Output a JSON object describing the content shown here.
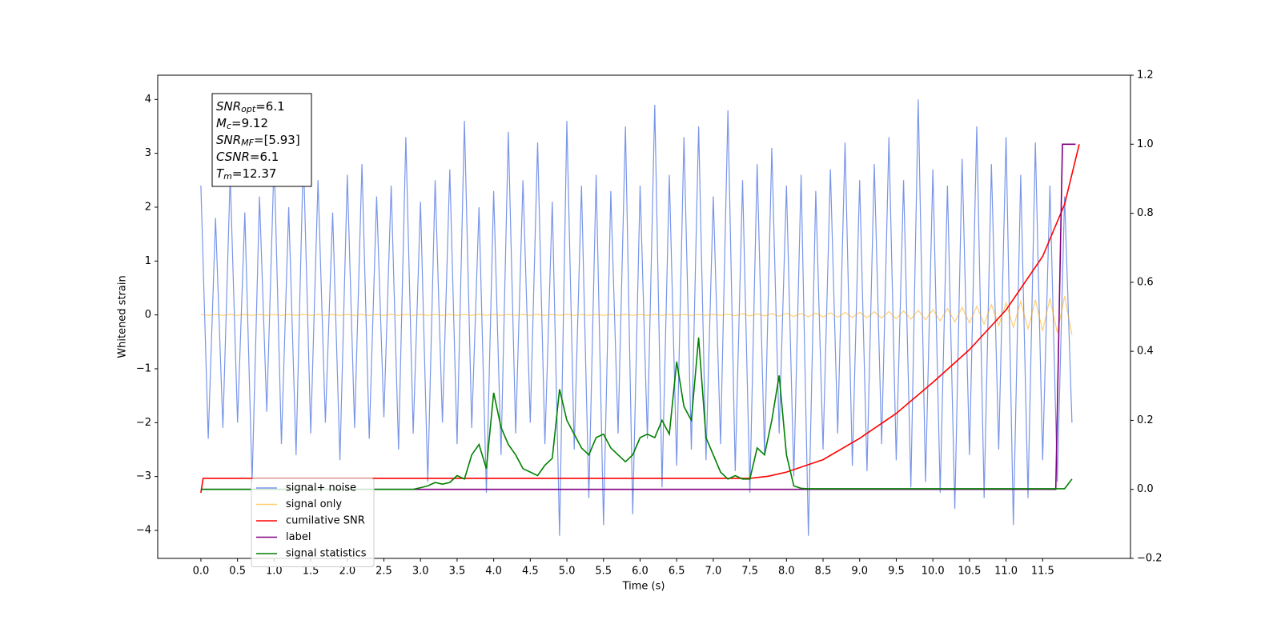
{
  "chart_data": {
    "type": "line",
    "xlabel": "Time (s)",
    "ylabel": "Whitened strain",
    "xlim": [
      -0.59,
      12.7
    ],
    "ylim": [
      -4.52,
      4.45
    ],
    "y2lim": [
      -0.2,
      1.2
    ],
    "xticks": [
      {
        "value": 0,
        "label": "0.0"
      },
      0.5,
      {
        "value": 1,
        "label": "1.0"
      },
      1.5,
      {
        "value": 2,
        "label": "2.0"
      },
      2.5,
      {
        "value": 3,
        "label": "3.0"
      },
      3.5,
      {
        "value": 4,
        "label": "4.0"
      },
      4.5,
      {
        "value": 5,
        "label": "5.0"
      },
      5.5,
      {
        "value": 6,
        "label": "6.0"
      },
      6.5,
      {
        "value": 7,
        "label": "7.0"
      },
      7.5,
      {
        "value": 8,
        "label": "8.0"
      },
      8.5,
      {
        "value": 9,
        "label": "9.0"
      },
      9.5,
      {
        "value": 10,
        "label": "10.0"
      },
      10.5,
      {
        "value": 11,
        "label": "11.0"
      },
      11.5
    ],
    "yticks": [
      {
        "value": -4,
        "label": "−4"
      },
      {
        "value": -3,
        "label": "−3"
      },
      {
        "value": -2,
        "label": "−2"
      },
      {
        "value": -1,
        "label": "−1"
      },
      0,
      1,
      2,
      3,
      4
    ],
    "y2ticks": [
      {
        "value": -0.2,
        "label": "−0.2"
      },
      {
        "value": 0,
        "label": "0.0"
      },
      0.2,
      0.4,
      0.6,
      0.8,
      {
        "value": 1,
        "label": "1.0"
      },
      1.2
    ],
    "legend": "lower left",
    "annotation": [
      {
        "name": "SNR",
        "sub": "opt",
        "text": "=6.1"
      },
      {
        "name": "M",
        "sub": "c",
        "text": "=9.12"
      },
      {
        "name": "SNR",
        "sub": "MF",
        "text": "=[5.93]"
      },
      {
        "name": "CSNR",
        "sub": "",
        "text": "=6.1"
      },
      {
        "name": "T",
        "sub": "m",
        "text": "=12.37"
      }
    ],
    "series": [
      {
        "name": "signal+ noise",
        "color": "#7895e8",
        "axis": "y",
        "x": [
          0,
          0.1,
          0.2,
          0.3,
          0.4,
          0.5,
          0.6,
          0.7,
          0.8,
          0.9,
          1,
          1.1,
          1.2,
          1.3,
          1.4,
          1.5,
          1.6,
          1.7,
          1.8,
          1.9,
          2,
          2.1,
          2.2,
          2.3,
          2.4,
          2.5,
          2.6,
          2.7,
          2.8,
          2.9,
          3,
          3.1,
          3.2,
          3.3,
          3.4,
          3.5,
          3.6,
          3.7,
          3.8,
          3.9,
          4,
          4.1,
          4.2,
          4.3,
          4.4,
          4.5,
          4.6,
          4.7,
          4.8,
          4.9,
          5,
          5.1,
          5.2,
          5.3,
          5.4,
          5.5,
          5.6,
          5.7,
          5.8,
          5.9,
          6,
          6.1,
          6.2,
          6.3,
          6.4,
          6.5,
          6.6,
          6.7,
          6.8,
          6.9,
          7,
          7.1,
          7.2,
          7.3,
          7.4,
          7.5,
          7.6,
          7.7,
          7.8,
          7.9,
          8,
          8.1,
          8.2,
          8.3,
          8.4,
          8.5,
          8.6,
          8.7,
          8.8,
          8.9,
          9,
          9.1,
          9.2,
          9.3,
          9.4,
          9.5,
          9.6,
          9.7,
          9.8,
          9.9,
          10,
          10.1,
          10.2,
          10.3,
          10.4,
          10.5,
          10.6,
          10.7,
          10.8,
          10.9,
          11,
          11.1,
          11.2,
          11.3,
          11.4,
          11.5,
          11.6,
          11.7,
          11.8,
          11.9
        ],
        "values": [
          2.4,
          -2.3,
          1.8,
          -2.1,
          2.6,
          -2.0,
          1.9,
          -3.1,
          2.2,
          -1.8,
          2.9,
          -2.4,
          2.0,
          -2.6,
          3.0,
          -2.2,
          2.5,
          -2.0,
          1.9,
          -2.7,
          2.6,
          -2.1,
          2.8,
          -2.3,
          2.2,
          -1.9,
          2.4,
          -2.5,
          3.3,
          -2.2,
          2.1,
          -3.1,
          2.5,
          -2.0,
          2.7,
          -2.4,
          3.6,
          -2.1,
          2.0,
          -3.3,
          2.3,
          -2.6,
          3.4,
          -2.2,
          2.5,
          -2.0,
          3.2,
          -2.4,
          2.1,
          -4.1,
          3.6,
          -2.5,
          2.4,
          -3.4,
          2.6,
          -3.9,
          2.3,
          -2.2,
          3.5,
          -3.7,
          2.4,
          -2.3,
          3.9,
          -3.2,
          2.6,
          -2.8,
          3.3,
          -2.5,
          3.5,
          -2.7,
          2.2,
          -2.4,
          3.8,
          -2.9,
          2.5,
          -3.3,
          2.8,
          -2.6,
          3.1,
          -2.2,
          2.4,
          -3.0,
          2.6,
          -4.1,
          2.3,
          -2.5,
          2.7,
          -2.2,
          3.2,
          -2.8,
          2.5,
          -2.9,
          2.8,
          -2.4,
          3.3,
          -2.7,
          2.5,
          -3.2,
          4.0,
          -3.1,
          2.7,
          -3.3,
          2.4,
          -3.6,
          2.9,
          -2.6,
          3.5,
          -3.4,
          2.8,
          -2.5,
          3.3,
          -3.9,
          2.6,
          -3.4,
          3.2,
          -2.7,
          2.4,
          -3.1,
          2.2,
          -2.0
        ]
      },
      {
        "name": "signal only",
        "color": "#ffa500",
        "axis": "y",
        "x": [
          0,
          0.1,
          0.2,
          0.3,
          0.4,
          0.5,
          0.6,
          0.7,
          0.8,
          0.9,
          1,
          1.1,
          1.2,
          1.3,
          1.4,
          1.5,
          1.6,
          1.7,
          1.8,
          1.9,
          2,
          2.1,
          2.2,
          2.3,
          2.4,
          2.5,
          2.6,
          2.7,
          2.8,
          2.9,
          3,
          3.1,
          3.2,
          3.3,
          3.4,
          3.5,
          3.6,
          3.7,
          3.8,
          3.9,
          4,
          4.1,
          4.2,
          4.3,
          4.4,
          4.5,
          4.6,
          4.7,
          4.8,
          4.9,
          5,
          5.1,
          5.2,
          5.3,
          5.4,
          5.5,
          5.6,
          5.7,
          5.8,
          5.9,
          6,
          6.1,
          6.2,
          6.3,
          6.4,
          6.5,
          6.6,
          6.7,
          6.8,
          6.9,
          7,
          7.1,
          7.2,
          7.3,
          7.4,
          7.5,
          7.6,
          7.7,
          7.8,
          7.9,
          8,
          8.1,
          8.2,
          8.3,
          8.4,
          8.5,
          8.6,
          8.7,
          8.8,
          8.9,
          9,
          9.1,
          9.2,
          9.3,
          9.4,
          9.5,
          9.6,
          9.7,
          9.8,
          9.9,
          10,
          10.1,
          10.2,
          10.3,
          10.4,
          10.5,
          10.6,
          10.7,
          10.8,
          10.9,
          11,
          11.1,
          11.2,
          11.3,
          11.4,
          11.5,
          11.6,
          11.7,
          11.8,
          11.9
        ],
        "values": [
          0.01,
          -0.01,
          0.01,
          -0.01,
          0.01,
          -0.01,
          0.01,
          -0.01,
          0.01,
          -0.01,
          0.01,
          -0.01,
          0.01,
          -0.01,
          0.01,
          -0.01,
          0.01,
          -0.01,
          0.01,
          -0.01,
          0.01,
          -0.01,
          0.01,
          -0.01,
          0.01,
          -0.01,
          0.01,
          -0.01,
          0.01,
          -0.01,
          0.01,
          -0.01,
          0.01,
          -0.01,
          0.01,
          -0.01,
          0.01,
          -0.01,
          0.01,
          -0.01,
          0.01,
          -0.01,
          0.01,
          -0.01,
          0.01,
          -0.01,
          0.01,
          -0.01,
          0.01,
          -0.01,
          0.01,
          -0.01,
          0.01,
          -0.01,
          0.01,
          -0.01,
          0.01,
          -0.01,
          0.01,
          -0.01,
          0.01,
          -0.01,
          0.01,
          -0.01,
          0.01,
          -0.01,
          0.01,
          -0.01,
          0.01,
          -0.01,
          0.01,
          -0.01,
          0.015,
          -0.015,
          0.02,
          -0.02,
          0.02,
          -0.02,
          0.025,
          -0.025,
          0.03,
          -0.03,
          0.03,
          -0.035,
          0.035,
          -0.04,
          0.04,
          -0.045,
          0.045,
          -0.05,
          0.05,
          -0.055,
          0.06,
          -0.06,
          0.065,
          -0.07,
          0.075,
          -0.08,
          0.085,
          -0.09,
          0.1,
          -0.11,
          0.12,
          -0.13,
          0.14,
          -0.15,
          0.16,
          -0.17,
          0.19,
          -0.2,
          0.22,
          -0.23,
          0.25,
          -0.26,
          0.28,
          -0.3,
          0.31,
          -0.33,
          0.35,
          -0.37
        ]
      },
      {
        "name": "cumilative SNR",
        "color": "#ff0000",
        "axis": "y2",
        "x": [
          0,
          0.03,
          7.5,
          7.75,
          8,
          8.5,
          9,
          9.5,
          10,
          10.5,
          11,
          11.5,
          11.8,
          12
        ],
        "values": [
          -0.01,
          0.032,
          0.032,
          0.038,
          0.05,
          0.086,
          0.148,
          0.22,
          0.31,
          0.405,
          0.52,
          0.675,
          0.826,
          1.0
        ]
      },
      {
        "name": "label",
        "color": "#800080",
        "axis": "y2",
        "x": [
          0,
          11.68,
          11.77,
          11.95
        ],
        "values": [
          0,
          0,
          1,
          1
        ]
      },
      {
        "name": "signal statistics",
        "color": "#008000",
        "axis": "y2",
        "x": [
          0,
          0.1,
          0.2,
          0.3,
          0.4,
          0.5,
          0.6,
          0.7,
          0.8,
          0.9,
          1,
          1.1,
          1.2,
          1.3,
          1.4,
          1.5,
          1.6,
          1.7,
          1.8,
          1.9,
          2,
          2.1,
          2.2,
          2.3,
          2.4,
          2.5,
          2.6,
          2.7,
          2.8,
          2.9,
          3,
          3.1,
          3.2,
          3.3,
          3.4,
          3.5,
          3.6,
          3.7,
          3.8,
          3.9,
          4,
          4.1,
          4.2,
          4.3,
          4.4,
          4.5,
          4.6,
          4.7,
          4.8,
          4.9,
          5,
          5.1,
          5.2,
          5.3,
          5.4,
          5.5,
          5.6,
          5.7,
          5.8,
          5.9,
          6,
          6.1,
          6.2,
          6.3,
          6.4,
          6.5,
          6.6,
          6.7,
          6.8,
          6.9,
          7,
          7.1,
          7.2,
          7.3,
          7.4,
          7.5,
          7.6,
          7.7,
          7.8,
          7.9,
          8,
          8.1,
          8.2,
          8.3,
          8.4,
          8.5,
          8.6,
          8.7,
          8.8,
          8.9,
          9,
          9.1,
          9.2,
          9.3,
          9.4,
          9.5,
          9.6,
          9.7,
          9.8,
          9.9,
          10,
          10.1,
          10.2,
          10.3,
          10.4,
          10.5,
          10.6,
          10.7,
          10.8,
          10.9,
          11,
          11.1,
          11.2,
          11.3,
          11.4,
          11.5,
          11.6,
          11.7,
          11.8,
          11.9
        ],
        "values": [
          0,
          0,
          0,
          0,
          0,
          0,
          0,
          0,
          0,
          0,
          0,
          0,
          0,
          0,
          0,
          0,
          0,
          0,
          0,
          0,
          0,
          0,
          0,
          0,
          0,
          0,
          0,
          0,
          0,
          0,
          0.005,
          0.01,
          0.02,
          0.015,
          0.02,
          0.04,
          0.03,
          0.1,
          0.13,
          0.06,
          0.28,
          0.18,
          0.13,
          0.1,
          0.06,
          0.05,
          0.04,
          0.07,
          0.09,
          0.29,
          0.2,
          0.16,
          0.12,
          0.1,
          0.15,
          0.16,
          0.12,
          0.1,
          0.08,
          0.1,
          0.15,
          0.16,
          0.15,
          0.2,
          0.16,
          0.37,
          0.24,
          0.2,
          0.44,
          0.15,
          0.1,
          0.05,
          0.03,
          0.04,
          0.03,
          0.03,
          0.12,
          0.1,
          0.2,
          0.33,
          0.1,
          0.01,
          0.003,
          0.002,
          0.002,
          0.002,
          0.002,
          0.002,
          0.002,
          0.002,
          0.002,
          0.002,
          0.002,
          0.002,
          0.002,
          0.002,
          0.002,
          0.002,
          0.002,
          0.002,
          0.002,
          0.002,
          0.002,
          0.002,
          0.002,
          0.002,
          0.002,
          0.002,
          0.002,
          0.002,
          0.002,
          0.002,
          0.002,
          0.002,
          0.002,
          0.002,
          0.002,
          0.002,
          0.002,
          0.03
        ]
      }
    ]
  }
}
